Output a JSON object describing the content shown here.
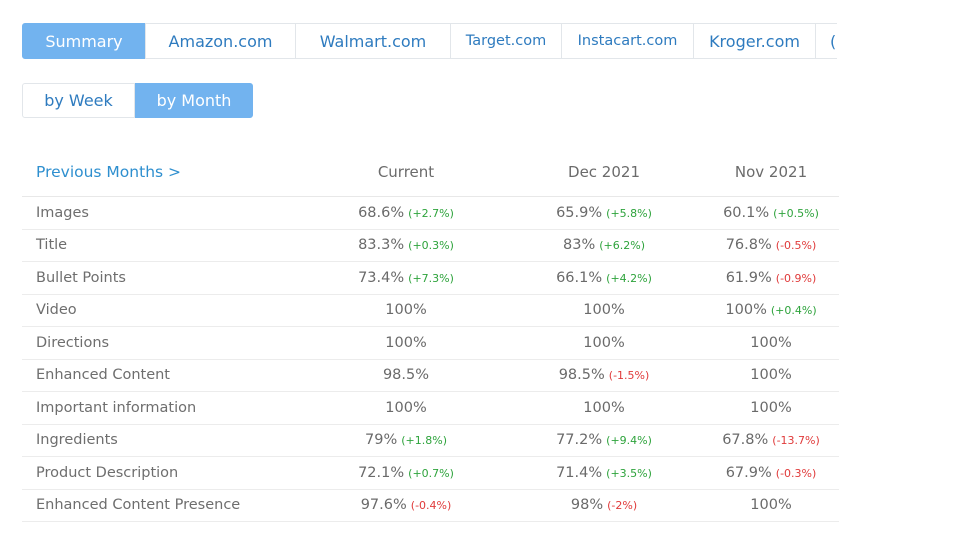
{
  "colors": {
    "accent": "#72b3ef",
    "link": "#2e7bbf",
    "positive": "#2ea33c",
    "negative": "#e03a3a"
  },
  "tabs": [
    {
      "label": "Summary",
      "active": true
    },
    {
      "label": "Amazon.com",
      "active": false
    },
    {
      "label": "Walmart.com",
      "active": false
    },
    {
      "label": "Target.com",
      "active": false
    },
    {
      "label": "Instacart.com",
      "active": false
    },
    {
      "label": "Kroger.com",
      "active": false
    },
    {
      "label": "(",
      "active": false
    }
  ],
  "period_toggle": {
    "week_label": "by Week",
    "month_label": "by Month",
    "selected": "by Month"
  },
  "table": {
    "header": {
      "previous_link": "Previous Months >",
      "columns": [
        "Current",
        "Dec 2021",
        "Nov 2021"
      ]
    },
    "rows": [
      {
        "label": "Images",
        "cells": [
          {
            "value": "68.6%",
            "delta": "(+2.7%)",
            "dir": "up"
          },
          {
            "value": "65.9%",
            "delta": "(+5.8%)",
            "dir": "up"
          },
          {
            "value": "60.1%",
            "delta": "(+0.5%)",
            "dir": "up"
          }
        ]
      },
      {
        "label": "Title",
        "cells": [
          {
            "value": "83.3%",
            "delta": "(+0.3%)",
            "dir": "up"
          },
          {
            "value": "83%",
            "delta": "(+6.2%)",
            "dir": "up"
          },
          {
            "value": "76.8%",
            "delta": "(-0.5%)",
            "dir": "down"
          }
        ]
      },
      {
        "label": "Bullet Points",
        "cells": [
          {
            "value": "73.4%",
            "delta": "(+7.3%)",
            "dir": "up"
          },
          {
            "value": "66.1%",
            "delta": "(+4.2%)",
            "dir": "up"
          },
          {
            "value": "61.9%",
            "delta": "(-0.9%)",
            "dir": "down"
          }
        ]
      },
      {
        "label": "Video",
        "cells": [
          {
            "value": "100%",
            "delta": "",
            "dir": ""
          },
          {
            "value": "100%",
            "delta": "",
            "dir": ""
          },
          {
            "value": "100%",
            "delta": "(+0.4%)",
            "dir": "up"
          }
        ]
      },
      {
        "label": "Directions",
        "cells": [
          {
            "value": "100%",
            "delta": "",
            "dir": ""
          },
          {
            "value": "100%",
            "delta": "",
            "dir": ""
          },
          {
            "value": "100%",
            "delta": "",
            "dir": ""
          }
        ]
      },
      {
        "label": "Enhanced Content",
        "cells": [
          {
            "value": "98.5%",
            "delta": "",
            "dir": ""
          },
          {
            "value": "98.5%",
            "delta": "(-1.5%)",
            "dir": "down"
          },
          {
            "value": "100%",
            "delta": "",
            "dir": ""
          }
        ]
      },
      {
        "label": "Important information",
        "cells": [
          {
            "value": "100%",
            "delta": "",
            "dir": ""
          },
          {
            "value": "100%",
            "delta": "",
            "dir": ""
          },
          {
            "value": "100%",
            "delta": "",
            "dir": ""
          }
        ]
      },
      {
        "label": "Ingredients",
        "cells": [
          {
            "value": "79%",
            "delta": "(+1.8%)",
            "dir": "up"
          },
          {
            "value": "77.2%",
            "delta": "(+9.4%)",
            "dir": "up"
          },
          {
            "value": "67.8%",
            "delta": "(-13.7%)",
            "dir": "down"
          }
        ]
      },
      {
        "label": "Product Description",
        "cells": [
          {
            "value": "72.1%",
            "delta": "(+0.7%)",
            "dir": "up"
          },
          {
            "value": "71.4%",
            "delta": "(+3.5%)",
            "dir": "up"
          },
          {
            "value": "67.9%",
            "delta": "(-0.3%)",
            "dir": "down"
          }
        ]
      },
      {
        "label": "Enhanced Content Presence",
        "cells": [
          {
            "value": "97.6%",
            "delta": "(-0.4%)",
            "dir": "down"
          },
          {
            "value": "98%",
            "delta": "(-2%)",
            "dir": "down"
          },
          {
            "value": "100%",
            "delta": "",
            "dir": ""
          }
        ]
      }
    ]
  }
}
